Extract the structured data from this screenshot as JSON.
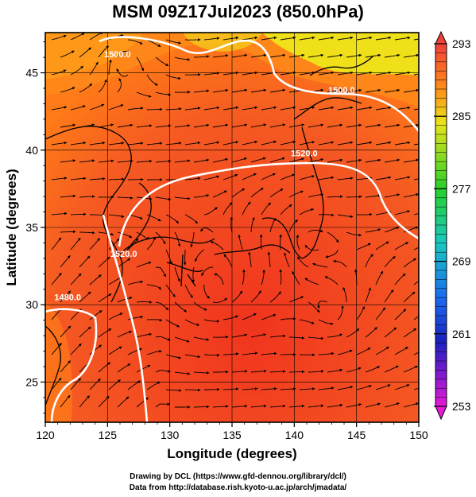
{
  "title": "MSM 09Z17Jul2023 (850.0hPa)",
  "map": {
    "x_axis_title": "Longitude (degrees)",
    "y_axis_title": "Latitude  (degrees)",
    "lon_range": [
      120,
      150
    ],
    "lat_range": [
      22.4,
      47.6
    ],
    "lon_ticks": [
      "120",
      "125",
      "130",
      "135",
      "140",
      "145",
      "150"
    ],
    "lat_ticks": [
      "25",
      "30",
      "35",
      "40",
      "45"
    ],
    "grid": true,
    "colors": {
      "warm": "#f03a1e",
      "mid": "#ff7a18",
      "cool": "#e9e41a",
      "coast": "#000000",
      "contour": "#ffffff",
      "wind": "#000000"
    },
    "contours": [
      {
        "label": "1500.0",
        "label_lon": 125.8,
        "label_lat": 46.0
      },
      {
        "label": "1520.0",
        "label_lon": 140.8,
        "label_lat": 39.6
      },
      {
        "label": "1500.0",
        "label_lon": 143.8,
        "label_lat": 43.7
      },
      {
        "label": "1520.0",
        "label_lon": 126.3,
        "label_lat": 33.1
      },
      {
        "label": "1480.0",
        "label_lon": 121.8,
        "label_lat": 30.3
      }
    ]
  },
  "colorbar": {
    "min": 253,
    "max": 293,
    "labels": [
      "293",
      "285",
      "277",
      "269",
      "261",
      "253"
    ]
  },
  "credits": {
    "line1": "Drawing by DCL (https://www.gfd-dennou.org/library/dcl/)",
    "line2": "Data from http://database.rish.kyoto-u.ac.jp/arch/jmadata/"
  }
}
